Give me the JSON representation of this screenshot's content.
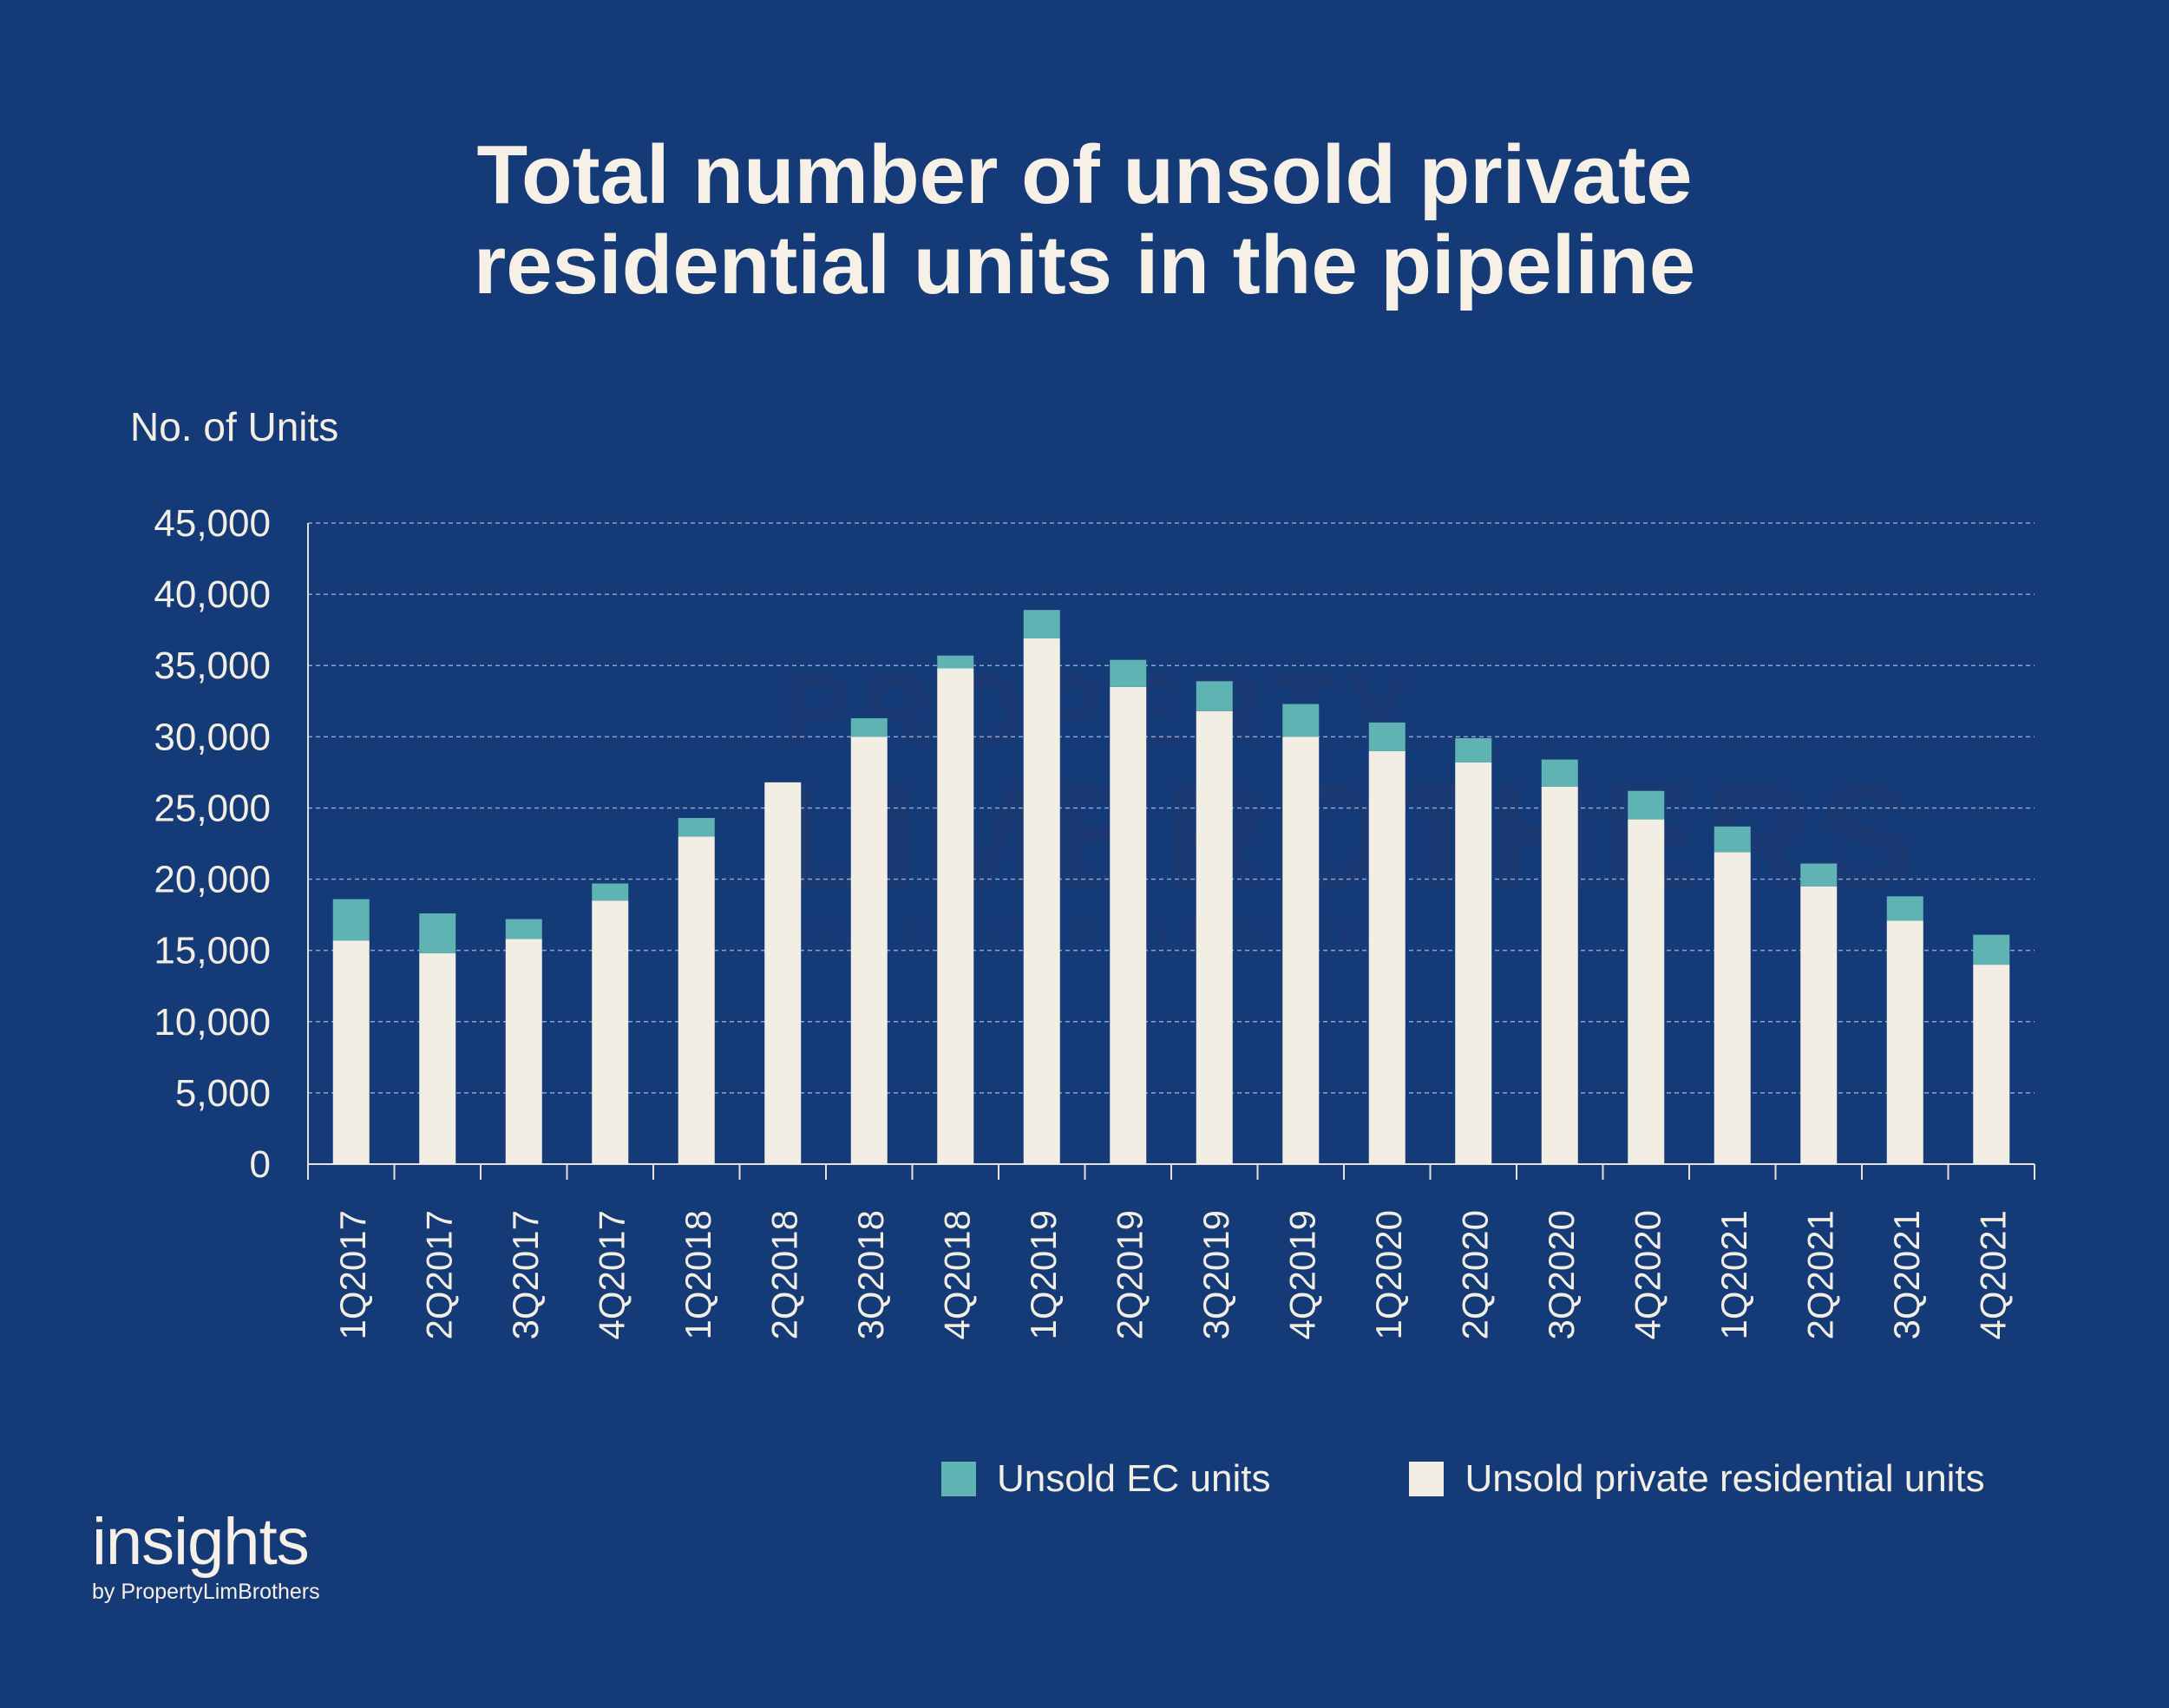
{
  "title_line1": "Total number of unsold private",
  "title_line2": "residential units in the pipeline",
  "watermark": {
    "line1": "PROPERTY",
    "line2": "LIMBROTHERS",
    "line3": "Real Estate With Integrity"
  },
  "brand": {
    "name": "insights",
    "byline": "by PropertyLimBrothers"
  },
  "colors": {
    "background": "#143a78",
    "private": "#f3eee3",
    "ec": "#5fb3b3",
    "text": "#f3eee3"
  },
  "chart_data": {
    "type": "bar",
    "stacked": true,
    "title": "Total number of unsold private residential units in the pipeline",
    "ylabel": "No. of Units",
    "xlabel": "",
    "ylim": [
      0,
      45000
    ],
    "yticks": [
      0,
      5000,
      10000,
      15000,
      20000,
      25000,
      30000,
      35000,
      40000,
      45000
    ],
    "ytick_labels": [
      "0",
      "5,000",
      "10,000",
      "15,000",
      "20,000",
      "25,000",
      "30,000",
      "35,000",
      "40,000",
      "45,000"
    ],
    "grid": true,
    "legend_position": "bottom-right",
    "categories": [
      "1Q2017",
      "2Q2017",
      "3Q2017",
      "4Q2017",
      "1Q2018",
      "2Q2018",
      "3Q2018",
      "4Q2018",
      "1Q2019",
      "2Q2019",
      "3Q2019",
      "4Q2019",
      "1Q2020",
      "2Q2020",
      "3Q2020",
      "4Q2020",
      "1Q2021",
      "2Q2021",
      "3Q2021",
      "4Q2021"
    ],
    "series": [
      {
        "name": "Unsold private residential units",
        "color": "#f3eee3",
        "values": [
          15700,
          14800,
          15800,
          18500,
          23000,
          26800,
          30000,
          34800,
          36900,
          33500,
          31800,
          30000,
          29000,
          28200,
          26500,
          24200,
          21900,
          19500,
          17100,
          14000
        ]
      },
      {
        "name": "Unsold EC units",
        "color": "#5fb3b3",
        "values": [
          2900,
          2800,
          1400,
          1200,
          1300,
          0,
          1300,
          900,
          2000,
          1900,
          2100,
          2300,
          2000,
          1700,
          1900,
          2000,
          1800,
          1600,
          1700,
          2100
        ]
      }
    ]
  }
}
